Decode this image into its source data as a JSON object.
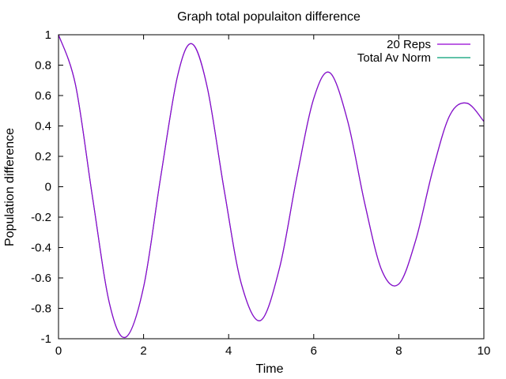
{
  "chart_data": {
    "type": "line",
    "title": "Graph total populaiton difference",
    "xlabel": "Time",
    "ylabel": "Population difference",
    "xlim": [
      0,
      10
    ],
    "ylim": [
      -1,
      1
    ],
    "xticks": [
      0,
      2,
      4,
      6,
      8,
      10
    ],
    "xtick_labels": [
      "0",
      "2",
      "4",
      "6",
      "8",
      "10"
    ],
    "yticks": [
      -1,
      -0.8,
      -0.6,
      -0.4,
      -0.2,
      0,
      0.2,
      0.4,
      0.6,
      0.8,
      1
    ],
    "ytick_labels": [
      "-1",
      "-0.8",
      "-0.6",
      "-0.4",
      "-0.2",
      "0",
      "0.2",
      "0.4",
      "0.6",
      "0.8",
      "1"
    ],
    "grid": false,
    "legend_position": "top-right",
    "x": [
      0,
      0.4,
      0.8,
      1.2,
      1.58,
      2.0,
      2.4,
      2.8,
      3.14,
      3.5,
      3.9,
      4.3,
      4.75,
      5.2,
      5.6,
      6.0,
      6.38,
      6.8,
      7.2,
      7.6,
      8.0,
      8.4,
      8.8,
      9.2,
      9.6,
      10.0
    ],
    "series": [
      {
        "name": "20 Reps",
        "color": "#9400d3",
        "y": [
          1.0,
          0.67,
          -0.07,
          -0.77,
          -0.99,
          -0.66,
          0.06,
          0.73,
          0.94,
          0.65,
          -0.03,
          -0.64,
          -0.88,
          -0.53,
          0.06,
          0.58,
          0.75,
          0.43,
          -0.11,
          -0.55,
          -0.64,
          -0.35,
          0.11,
          0.47,
          0.55,
          0.43
        ]
      },
      {
        "name": "Total Av Norm",
        "color": "#009e73",
        "y": [
          1.0,
          0.67,
          -0.07,
          -0.77,
          -0.99,
          -0.66,
          0.06,
          0.73,
          0.94,
          0.65,
          -0.03,
          -0.64,
          -0.88,
          -0.53,
          0.06,
          0.58,
          0.75,
          0.43,
          -0.11,
          -0.55,
          -0.64,
          -0.35,
          0.11,
          0.47,
          0.55,
          0.43
        ]
      }
    ]
  }
}
